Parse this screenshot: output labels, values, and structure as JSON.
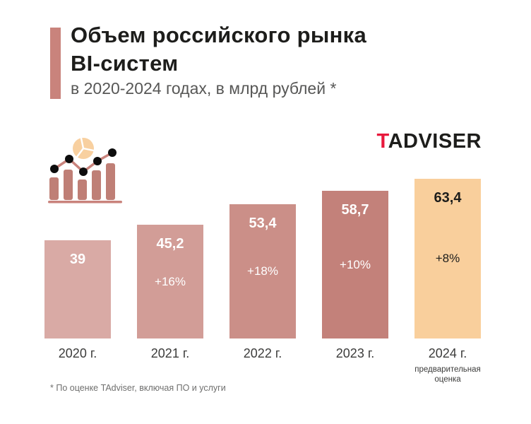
{
  "header": {
    "title_line1": "Объем российского рынка",
    "title_line2": "BI-систем",
    "subtitle": "в 2020-2024 годах, в млрд рублей *",
    "accent_color": "#c9837c"
  },
  "logo": {
    "prefix": "T",
    "rest": "ADVISER",
    "prefix_color": "#e8193c",
    "rest_color": "#1d1d1b"
  },
  "icon": {
    "name": "bar-line-pie-chart-icon",
    "bar_color": "#bf7f76",
    "line_color": "#c9837c",
    "pie_color": "#f8d0a0",
    "dot_color": "#0d0d0d"
  },
  "chart_data": {
    "type": "bar",
    "title": "Объем российского рынка BI-систем",
    "subtitle": "в 2020-2024 годах, в млрд рублей *",
    "unit": "млрд рублей",
    "categories": [
      "2020 г.",
      "2021 г.",
      "2022 г.",
      "2023 г.",
      "2024 г."
    ],
    "values": [
      39,
      45.2,
      53.4,
      58.7,
      63.4
    ],
    "value_labels": [
      "39",
      "45,2",
      "53,4",
      "58,7",
      "63,4"
    ],
    "growth_labels": [
      "",
      "+16%",
      "+18%",
      "+10%",
      "+8%"
    ],
    "bar_colors": [
      "#d9aaa5",
      "#d29d97",
      "#cb8f88",
      "#c3817a",
      "#f9cf9c"
    ],
    "text_colors": [
      "#ffffff",
      "#ffffff",
      "#ffffff",
      "#ffffff",
      "#1d1d1b"
    ],
    "last_bar_note": "предварительная оценка",
    "ylim": [
      0,
      65
    ],
    "grid": false,
    "legend": false
  },
  "footnote": "* По оценке TAdviser, включая ПО и услуги"
}
